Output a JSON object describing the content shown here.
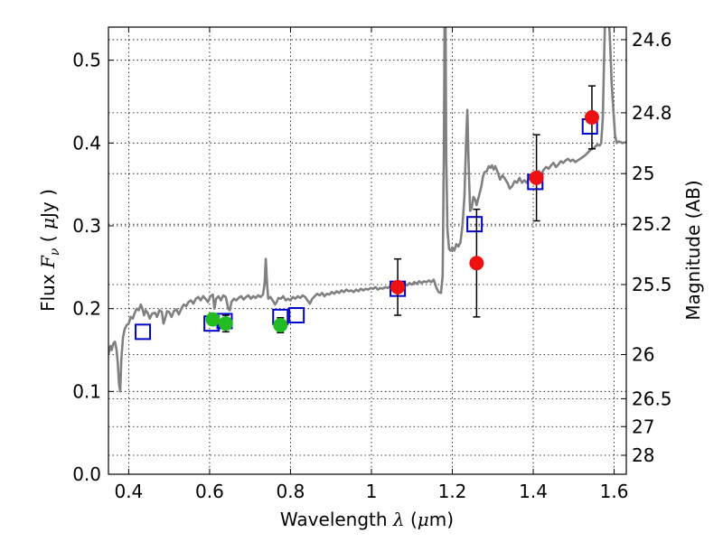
{
  "chart_data": {
    "type": "scatter",
    "xlabel_parts": {
      "text": "Wavelength  ",
      "symbol": "λ",
      "unit_open": " (",
      "unit_mu": "μ",
      "unit_rest": "m)"
    },
    "ylabel_parts": {
      "text": "Flux  ",
      "symbol": "F",
      "sub": "ν",
      "unit_open": "  ( ",
      "unit_mu": "μ",
      "unit_rest": "Jy )"
    },
    "y2label": "Magnitude (AB)",
    "xlim": [
      0.35,
      1.63
    ],
    "ylim": [
      0.0,
      0.54
    ],
    "grid": true,
    "x_ticks": [
      {
        "v": 0.4,
        "label": "0.4"
      },
      {
        "v": 0.6,
        "label": "0.6"
      },
      {
        "v": 0.8,
        "label": "0.8"
      },
      {
        "v": 1.0,
        "label": "1"
      },
      {
        "v": 1.2,
        "label": "1.2"
      },
      {
        "v": 1.4,
        "label": "1.4"
      },
      {
        "v": 1.6,
        "label": "1.6"
      }
    ],
    "y_ticks": [
      {
        "v": 0.0,
        "label": "0.0"
      },
      {
        "v": 0.1,
        "label": "0.1"
      },
      {
        "v": 0.2,
        "label": "0.2"
      },
      {
        "v": 0.3,
        "label": "0.3"
      },
      {
        "v": 0.4,
        "label": "0.4"
      },
      {
        "v": 0.5,
        "label": "0.5"
      }
    ],
    "mag_ticks": [
      {
        "mag": 24.6,
        "label": "24.6"
      },
      {
        "mag": 24.8,
        "label": "24.8"
      },
      {
        "mag": 25.0,
        "label": "25"
      },
      {
        "mag": 25.2,
        "label": "25.2"
      },
      {
        "mag": 25.5,
        "label": "25.5"
      },
      {
        "mag": 26.0,
        "label": "26"
      },
      {
        "mag": 26.5,
        "label": "26.5"
      },
      {
        "mag": 27.0,
        "label": "27"
      },
      {
        "mag": 28.0,
        "label": "28"
      }
    ],
    "model_spectrum": {
      "color": "#808080",
      "points": [
        [
          0.35,
          0.145
        ],
        [
          0.355,
          0.155
        ],
        [
          0.358,
          0.15
        ],
        [
          0.362,
          0.158
        ],
        [
          0.366,
          0.16
        ],
        [
          0.37,
          0.15
        ],
        [
          0.373,
          0.135
        ],
        [
          0.376,
          0.11
        ],
        [
          0.379,
          0.1
        ],
        [
          0.382,
          0.14
        ],
        [
          0.386,
          0.165
        ],
        [
          0.39,
          0.175
        ],
        [
          0.395,
          0.18
        ],
        [
          0.4,
          0.182
        ],
        [
          0.405,
          0.19
        ],
        [
          0.41,
          0.188
        ],
        [
          0.415,
          0.195
        ],
        [
          0.42,
          0.2
        ],
        [
          0.425,
          0.198
        ],
        [
          0.43,
          0.205
        ],
        [
          0.434,
          0.2
        ],
        [
          0.438,
          0.192
        ],
        [
          0.442,
          0.198
        ],
        [
          0.447,
          0.195
        ],
        [
          0.452,
          0.188
        ],
        [
          0.458,
          0.194
        ],
        [
          0.465,
          0.195
        ],
        [
          0.47,
          0.19
        ],
        [
          0.476,
          0.198
        ],
        [
          0.482,
          0.196
        ],
        [
          0.486,
          0.182
        ],
        [
          0.49,
          0.188
        ],
        [
          0.495,
          0.197
        ],
        [
          0.5,
          0.196
        ],
        [
          0.506,
          0.19
        ],
        [
          0.512,
          0.197
        ],
        [
          0.518,
          0.199
        ],
        [
          0.524,
          0.193
        ],
        [
          0.53,
          0.2
        ],
        [
          0.536,
          0.205
        ],
        [
          0.542,
          0.203
        ],
        [
          0.548,
          0.208
        ],
        [
          0.554,
          0.21
        ],
        [
          0.56,
          0.206
        ],
        [
          0.566,
          0.212
        ],
        [
          0.572,
          0.214
        ],
        [
          0.578,
          0.21
        ],
        [
          0.584,
          0.215
        ],
        [
          0.59,
          0.212
        ],
        [
          0.596,
          0.208
        ],
        [
          0.602,
          0.215
        ],
        [
          0.608,
          0.217
        ],
        [
          0.612,
          0.2
        ],
        [
          0.616,
          0.212
        ],
        [
          0.622,
          0.215
        ],
        [
          0.628,
          0.21
        ],
        [
          0.634,
          0.216
        ],
        [
          0.64,
          0.214
        ],
        [
          0.646,
          0.2
        ],
        [
          0.65,
          0.198
        ],
        [
          0.654,
          0.208
        ],
        [
          0.66,
          0.212
        ],
        [
          0.666,
          0.21
        ],
        [
          0.672,
          0.213
        ],
        [
          0.678,
          0.215
        ],
        [
          0.684,
          0.211
        ],
        [
          0.69,
          0.214
        ],
        [
          0.696,
          0.216
        ],
        [
          0.702,
          0.212
        ],
        [
          0.708,
          0.215
        ],
        [
          0.714,
          0.213
        ],
        [
          0.72,
          0.216
        ],
        [
          0.726,
          0.214
        ],
        [
          0.732,
          0.217
        ],
        [
          0.736,
          0.23
        ],
        [
          0.739,
          0.26
        ],
        [
          0.742,
          0.23
        ],
        [
          0.745,
          0.212
        ],
        [
          0.75,
          0.214
        ],
        [
          0.756,
          0.21
        ],
        [
          0.762,
          0.205
        ],
        [
          0.766,
          0.208
        ],
        [
          0.77,
          0.213
        ],
        [
          0.776,
          0.212
        ],
        [
          0.782,
          0.215
        ],
        [
          0.788,
          0.21
        ],
        [
          0.794,
          0.212
        ],
        [
          0.8,
          0.21
        ],
        [
          0.806,
          0.214
        ],
        [
          0.812,
          0.212
        ],
        [
          0.818,
          0.215
        ],
        [
          0.824,
          0.213
        ],
        [
          0.83,
          0.216
        ],
        [
          0.836,
          0.214
        ],
        [
          0.842,
          0.21
        ],
        [
          0.848,
          0.206
        ],
        [
          0.854,
          0.212
        ],
        [
          0.86,
          0.215
        ],
        [
          0.866,
          0.218
        ],
        [
          0.872,
          0.216
        ],
        [
          0.878,
          0.219
        ],
        [
          0.884,
          0.215
        ],
        [
          0.89,
          0.218
        ],
        [
          0.896,
          0.217
        ],
        [
          0.902,
          0.22
        ],
        [
          0.908,
          0.218
        ],
        [
          0.914,
          0.221
        ],
        [
          0.92,
          0.219
        ],
        [
          0.926,
          0.222
        ],
        [
          0.932,
          0.22
        ],
        [
          0.938,
          0.223
        ],
        [
          0.944,
          0.221
        ],
        [
          0.95,
          0.222
        ],
        [
          0.956,
          0.22
        ],
        [
          0.962,
          0.223
        ],
        [
          0.968,
          0.221
        ],
        [
          0.974,
          0.224
        ],
        [
          0.98,
          0.222
        ],
        [
          0.986,
          0.224
        ],
        [
          0.992,
          0.223
        ],
        [
          0.998,
          0.225
        ],
        [
          1.004,
          0.224
        ],
        [
          1.01,
          0.226
        ],
        [
          1.016,
          0.223
        ],
        [
          1.022,
          0.225
        ],
        [
          1.028,
          0.224
        ],
        [
          1.034,
          0.226
        ],
        [
          1.04,
          0.225
        ],
        [
          1.046,
          0.227
        ],
        [
          1.052,
          0.225
        ],
        [
          1.058,
          0.228
        ],
        [
          1.064,
          0.226
        ],
        [
          1.07,
          0.229
        ],
        [
          1.076,
          0.227
        ],
        [
          1.082,
          0.23
        ],
        [
          1.088,
          0.228
        ],
        [
          1.094,
          0.231
        ],
        [
          1.1,
          0.229
        ],
        [
          1.106,
          0.232
        ],
        [
          1.112,
          0.23
        ],
        [
          1.118,
          0.233
        ],
        [
          1.124,
          0.231
        ],
        [
          1.13,
          0.233
        ],
        [
          1.136,
          0.232
        ],
        [
          1.142,
          0.234
        ],
        [
          1.148,
          0.232
        ],
        [
          1.154,
          0.235
        ],
        [
          1.16,
          0.226
        ],
        [
          1.166,
          0.22
        ],
        [
          1.172,
          0.219
        ],
        [
          1.176,
          0.24
        ],
        [
          1.179,
          0.38
        ],
        [
          1.181,
          0.56
        ],
        [
          1.183,
          0.56
        ],
        [
          1.185,
          0.38
        ],
        [
          1.188,
          0.295
        ],
        [
          1.192,
          0.272
        ],
        [
          1.196,
          0.27
        ],
        [
          1.2,
          0.274
        ],
        [
          1.205,
          0.27
        ],
        [
          1.21,
          0.278
        ],
        [
          1.215,
          0.275
        ],
        [
          1.22,
          0.28
        ],
        [
          1.225,
          0.3
        ],
        [
          1.23,
          0.335
        ],
        [
          1.234,
          0.4
        ],
        [
          1.237,
          0.44
        ],
        [
          1.24,
          0.38
        ],
        [
          1.244,
          0.318
        ],
        [
          1.248,
          0.322
        ],
        [
          1.252,
          0.335
        ],
        [
          1.256,
          0.332
        ],
        [
          1.26,
          0.325
        ],
        [
          1.264,
          0.333
        ],
        [
          1.268,
          0.34
        ],
        [
          1.272,
          0.348
        ],
        [
          1.276,
          0.36
        ],
        [
          1.28,
          0.365
        ],
        [
          1.285,
          0.366
        ],
        [
          1.29,
          0.372
        ],
        [
          1.294,
          0.37
        ],
        [
          1.298,
          0.373
        ],
        [
          1.302,
          0.368
        ],
        [
          1.306,
          0.372
        ],
        [
          1.312,
          0.365
        ],
        [
          1.318,
          0.356
        ],
        [
          1.324,
          0.361
        ],
        [
          1.33,
          0.357
        ],
        [
          1.336,
          0.352
        ],
        [
          1.342,
          0.345
        ],
        [
          1.348,
          0.348
        ],
        [
          1.354,
          0.354
        ],
        [
          1.36,
          0.352
        ],
        [
          1.366,
          0.358
        ],
        [
          1.372,
          0.352
        ],
        [
          1.378,
          0.355
        ],
        [
          1.384,
          0.352
        ],
        [
          1.39,
          0.358
        ],
        [
          1.396,
          0.362
        ],
        [
          1.402,
          0.36
        ],
        [
          1.408,
          0.364
        ],
        [
          1.414,
          0.366
        ],
        [
          1.42,
          0.362
        ],
        [
          1.426,
          0.368
        ],
        [
          1.432,
          0.371
        ],
        [
          1.438,
          0.369
        ],
        [
          1.444,
          0.373
        ],
        [
          1.45,
          0.376
        ],
        [
          1.456,
          0.371
        ],
        [
          1.462,
          0.374
        ],
        [
          1.468,
          0.378
        ],
        [
          1.474,
          0.376
        ],
        [
          1.48,
          0.379
        ],
        [
          1.486,
          0.381
        ],
        [
          1.492,
          0.378
        ],
        [
          1.498,
          0.38
        ],
        [
          1.504,
          0.377
        ],
        [
          1.51,
          0.379
        ],
        [
          1.516,
          0.381
        ],
        [
          1.522,
          0.383
        ],
        [
          1.528,
          0.385
        ],
        [
          1.534,
          0.388
        ],
        [
          1.54,
          0.391
        ],
        [
          1.546,
          0.393
        ],
        [
          1.552,
          0.395
        ],
        [
          1.558,
          0.398
        ],
        [
          1.564,
          0.397
        ],
        [
          1.568,
          0.4
        ],
        [
          1.572,
          0.43
        ],
        [
          1.575,
          0.5
        ],
        [
          1.578,
          0.56
        ],
        [
          1.586,
          0.56
        ],
        [
          1.59,
          0.52
        ],
        [
          1.594,
          0.47
        ],
        [
          1.598,
          0.44
        ],
        [
          1.602,
          0.41
        ],
        [
          1.606,
          0.4
        ],
        [
          1.612,
          0.402
        ],
        [
          1.62,
          0.4
        ],
        [
          1.63,
          0.401
        ]
      ]
    },
    "model_photometry": {
      "color": "#0000cc",
      "points": [
        {
          "x": 0.435,
          "y": 0.172
        },
        {
          "x": 0.605,
          "y": 0.182
        },
        {
          "x": 0.637,
          "y": 0.185
        },
        {
          "x": 0.775,
          "y": 0.19
        },
        {
          "x": 0.815,
          "y": 0.192
        },
        {
          "x": 1.065,
          "y": 0.224
        },
        {
          "x": 1.255,
          "y": 0.302
        },
        {
          "x": 1.405,
          "y": 0.353
        },
        {
          "x": 1.54,
          "y": 0.42
        }
      ]
    },
    "observed_green": {
      "color": "#22bb22",
      "points": [
        {
          "x": 0.608,
          "y": 0.187,
          "err": 0.0
        },
        {
          "x": 0.64,
          "y": 0.182,
          "err": 0.01
        },
        {
          "x": 0.775,
          "y": 0.18,
          "err": 0.009
        }
      ]
    },
    "observed_red": {
      "color": "#ee1111",
      "points": [
        {
          "x": 1.065,
          "y": 0.226,
          "err": 0.034
        },
        {
          "x": 1.26,
          "y": 0.255,
          "err": 0.065
        },
        {
          "x": 1.408,
          "y": 0.358,
          "err": 0.052
        },
        {
          "x": 1.545,
          "y": 0.431,
          "err": 0.038
        }
      ]
    }
  }
}
